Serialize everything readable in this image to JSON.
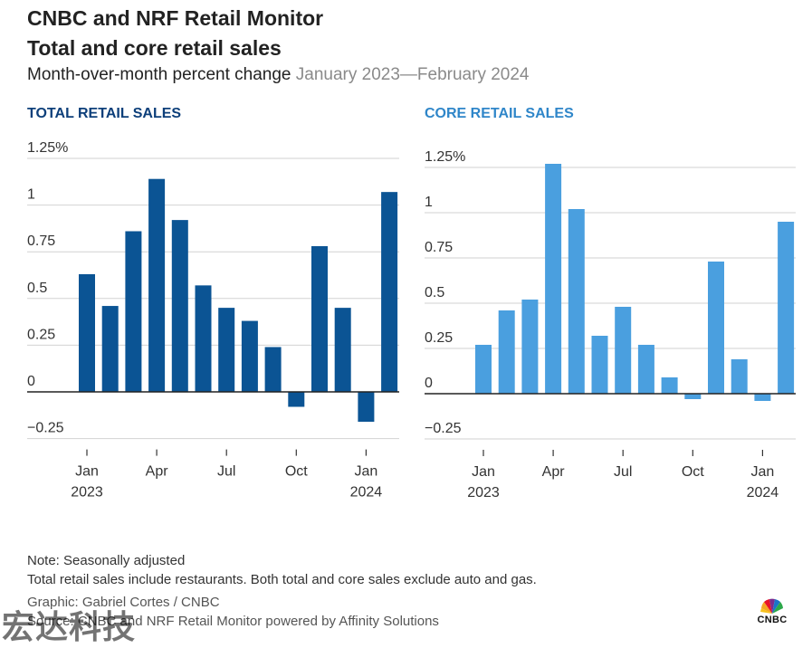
{
  "header": {
    "title_line1": "CNBC and NRF Retail Monitor",
    "title_line2": "Total and core retail sales",
    "subtitle": "Month-over-month percent change",
    "date_range": "January 2023—February 2024"
  },
  "chart_data": [
    {
      "type": "bar",
      "title": "TOTAL RETAIL SALES",
      "color": "#0b5494",
      "categories": [
        "Jan 2023",
        "Feb 2023",
        "Mar 2023",
        "Apr 2023",
        "May 2023",
        "Jun 2023",
        "Jul 2023",
        "Aug 2023",
        "Sep 2023",
        "Oct 2023",
        "Nov 2023",
        "Dec 2023",
        "Jan 2024",
        "Feb 2024"
      ],
      "values": [
        0.63,
        0.46,
        0.86,
        1.14,
        0.92,
        0.57,
        0.45,
        0.38,
        0.24,
        -0.08,
        0.78,
        0.45,
        -0.16,
        1.07
      ],
      "ylim": [
        -0.25,
        1.25
      ],
      "yticks": [
        "−0.25",
        "0",
        "0.25",
        "0.5",
        "0.75",
        "1",
        "1.25%"
      ],
      "ytick_values": [
        -0.25,
        0,
        0.25,
        0.5,
        0.75,
        1,
        1.25
      ],
      "xticks": [
        {
          "index": 0,
          "line1": "Jan",
          "line2": "2023"
        },
        {
          "index": 3,
          "line1": "Apr",
          "line2": ""
        },
        {
          "index": 6,
          "line1": "Jul",
          "line2": ""
        },
        {
          "index": 9,
          "line1": "Oct",
          "line2": ""
        },
        {
          "index": 12,
          "line1": "Jan",
          "line2": "2024"
        }
      ],
      "grid": true
    },
    {
      "type": "bar",
      "title": "CORE RETAIL SALES",
      "color": "#4a9fdf",
      "categories": [
        "Jan 2023",
        "Feb 2023",
        "Mar 2023",
        "Apr 2023",
        "May 2023",
        "Jun 2023",
        "Jul 2023",
        "Aug 2023",
        "Sep 2023",
        "Oct 2023",
        "Nov 2023",
        "Dec 2023",
        "Jan 2024",
        "Feb 2024"
      ],
      "values": [
        0.27,
        0.46,
        0.52,
        1.27,
        1.02,
        0.32,
        0.48,
        0.27,
        0.09,
        -0.03,
        0.73,
        0.19,
        -0.04,
        0.95
      ],
      "ylim": [
        -0.25,
        1.25
      ],
      "yticks": [
        "−0.25",
        "0",
        "0.25",
        "0.5",
        "0.75",
        "1",
        "1.25%"
      ],
      "ytick_values": [
        -0.25,
        0,
        0.25,
        0.5,
        0.75,
        1,
        1.25
      ],
      "xticks": [
        {
          "index": 0,
          "line1": "Jan",
          "line2": "2023"
        },
        {
          "index": 3,
          "line1": "Apr",
          "line2": ""
        },
        {
          "index": 6,
          "line1": "Jul",
          "line2": ""
        },
        {
          "index": 9,
          "line1": "Oct",
          "line2": ""
        },
        {
          "index": 12,
          "line1": "Jan",
          "line2": "2024"
        }
      ],
      "grid": true
    }
  ],
  "footer": {
    "note": "Note: Seasonally adjusted",
    "description": "Total retail sales include restaurants. Both total and core sales exclude auto and gas.",
    "graphic": "Graphic: Gabriel Cortes / CNBC",
    "source": "Source: CNBC and NRF Retail Monitor powered by Affinity Solutions"
  },
  "logo": {
    "text": "CNBC",
    "icon": "cnbc-peacock-icon"
  },
  "watermark": "宏达科技"
}
